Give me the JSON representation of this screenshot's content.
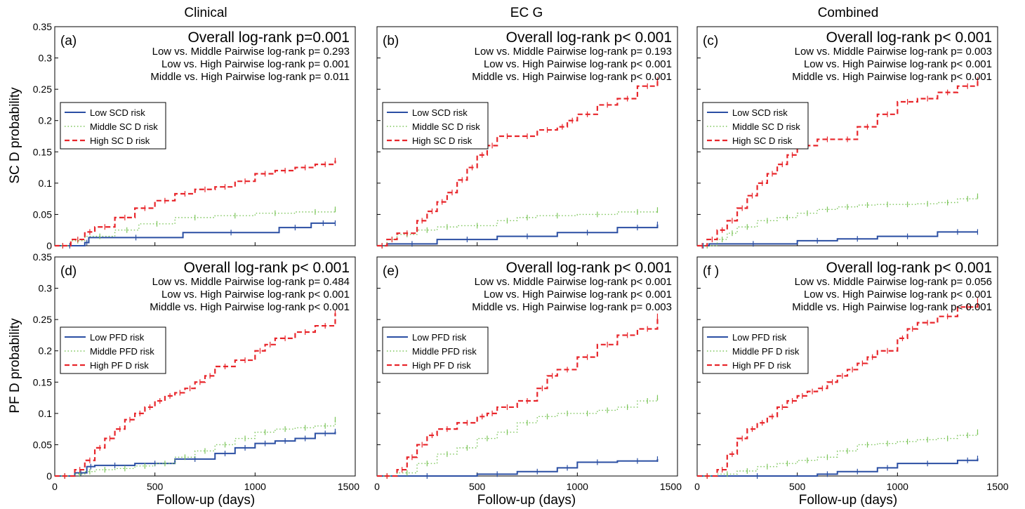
{
  "figure": {
    "column_titles": [
      "Clinical",
      "EC G",
      "Combined"
    ],
    "row_ylabels": [
      "SC D probability",
      "PF D probability"
    ],
    "xlabel": "Follow-up (days)"
  },
  "colors": {
    "low": "#2b4fa3",
    "middle": "#7cc55a",
    "high": "#e8262b",
    "axis": "#000000"
  },
  "chart_data": [
    {
      "type": "line",
      "panel": "(a)",
      "row": 0,
      "col": 0,
      "overall": "Overall log-rank p=0.001",
      "pairwise": [
        "Low vs. Middle Pairwise log-rank p= 0.293",
        "Low vs. High Pairwise log-rank p= 0.001",
        "Middle vs. High Pairwise log-rank p= 0.011"
      ],
      "legend": [
        "Low SCD risk",
        "Middle SC D risk",
        "High SC D risk"
      ],
      "legend_position": "middle-left",
      "xlim": [
        0,
        1500
      ],
      "ylim": [
        0,
        0.35
      ],
      "xticks": [
        0,
        500,
        1000,
        1500
      ],
      "yticks": [
        0,
        0.05,
        0.1,
        0.15,
        0.2,
        0.25,
        0.3,
        0.35
      ],
      "series": [
        {
          "name": "Low SCD risk",
          "style": "solid",
          "x": [
            0,
            150,
            170,
            640,
            1120,
            1280,
            1400
          ],
          "y": [
            0,
            0.005,
            0.013,
            0.021,
            0.029,
            0.036,
            0.036
          ]
        },
        {
          "name": "Middle SC D risk",
          "style": "dotted",
          "x": [
            0,
            80,
            150,
            300,
            420,
            600,
            800,
            1000,
            1200,
            1400
          ],
          "y": [
            0,
            0.008,
            0.015,
            0.025,
            0.035,
            0.045,
            0.048,
            0.052,
            0.054,
            0.058
          ]
        },
        {
          "name": "High SC D risk",
          "style": "dashed",
          "x": [
            0,
            80,
            150,
            200,
            300,
            400,
            500,
            600,
            700,
            800,
            900,
            1000,
            1100,
            1200,
            1300,
            1400
          ],
          "y": [
            0,
            0.01,
            0.022,
            0.03,
            0.045,
            0.06,
            0.072,
            0.083,
            0.09,
            0.094,
            0.103,
            0.115,
            0.12,
            0.125,
            0.13,
            0.136
          ]
        }
      ]
    },
    {
      "type": "line",
      "panel": "(b)",
      "row": 0,
      "col": 1,
      "overall": "Overall log-rank p< 0.001",
      "pairwise": [
        "Low vs. Middle Pairwise log-rank p= 0.193",
        "Low vs. High Pairwise log-rank p< 0.001",
        "Middle vs. High Pairwise log-rank p< 0.001"
      ],
      "legend": [
        "Low SCD risk",
        "Middle SC D risk",
        "High SC D risk"
      ],
      "legend_position": "middle-left",
      "xlim": [
        0,
        1500
      ],
      "ylim": [
        0,
        0.35
      ],
      "xticks": [
        0,
        500,
        1000,
        1500
      ],
      "yticks": [
        0,
        0.05,
        0.1,
        0.15,
        0.2,
        0.25,
        0.3,
        0.35
      ],
      "series": [
        {
          "name": "Low SCD risk",
          "style": "solid",
          "x": [
            0,
            50,
            300,
            600,
            900,
            1200,
            1400
          ],
          "y": [
            0,
            0.003,
            0.01,
            0.015,
            0.021,
            0.029,
            0.034
          ]
        },
        {
          "name": "Middle SC D risk",
          "style": "dotted",
          "x": [
            0,
            50,
            100,
            200,
            300,
            400,
            600,
            700,
            800,
            1000,
            1200,
            1400
          ],
          "y": [
            0,
            0.01,
            0.018,
            0.025,
            0.03,
            0.032,
            0.04,
            0.045,
            0.048,
            0.05,
            0.054,
            0.057
          ]
        },
        {
          "name": "High SC D risk",
          "style": "dashed",
          "x": [
            0,
            50,
            100,
            200,
            250,
            300,
            350,
            400,
            450,
            500,
            550,
            600,
            700,
            800,
            900,
            950,
            1000,
            1100,
            1200,
            1300,
            1400
          ],
          "y": [
            0,
            0.01,
            0.02,
            0.04,
            0.055,
            0.07,
            0.085,
            0.105,
            0.125,
            0.145,
            0.16,
            0.175,
            0.175,
            0.185,
            0.19,
            0.2,
            0.21,
            0.225,
            0.235,
            0.255,
            0.265
          ]
        }
      ]
    },
    {
      "type": "line",
      "panel": "(c)",
      "row": 0,
      "col": 2,
      "overall": "Overall log-rank p< 0.001",
      "pairwise": [
        "Low vs. Middle Pairwise log-rank p= 0.003",
        "Low vs. High Pairwise log-rank p< 0.001",
        "Middle vs. High Pairwise log-rank p< 0.001"
      ],
      "legend": [
        "Low SCD risk",
        "Middle SC D risk",
        "High SC D risk"
      ],
      "legend_position": "middle-left",
      "xlim": [
        0,
        1500
      ],
      "ylim": [
        0,
        0.35
      ],
      "xticks": [
        0,
        500,
        1000,
        1500
      ],
      "yticks": [
        0,
        0.05,
        0.1,
        0.15,
        0.2,
        0.25,
        0.3,
        0.35
      ],
      "series": [
        {
          "name": "Low SCD risk",
          "style": "solid",
          "x": [
            0,
            60,
            500,
            700,
            900,
            1200,
            1400
          ],
          "y": [
            0,
            0.003,
            0.008,
            0.011,
            0.015,
            0.022,
            0.022
          ]
        },
        {
          "name": "Middle SC D risk",
          "style": "dotted",
          "x": [
            0,
            100,
            150,
            200,
            300,
            400,
            500,
            600,
            700,
            800,
            900,
            1000,
            1100,
            1200,
            1300,
            1400
          ],
          "y": [
            0,
            0.01,
            0.02,
            0.03,
            0.04,
            0.045,
            0.052,
            0.058,
            0.062,
            0.065,
            0.066,
            0.066,
            0.067,
            0.069,
            0.075,
            0.079
          ]
        },
        {
          "name": "High SC D risk",
          "style": "dashed",
          "x": [
            0,
            50,
            100,
            150,
            200,
            250,
            300,
            350,
            400,
            450,
            500,
            600,
            700,
            800,
            900,
            1000,
            1100,
            1200,
            1300,
            1400
          ],
          "y": [
            0,
            0.01,
            0.025,
            0.04,
            0.06,
            0.08,
            0.1,
            0.115,
            0.13,
            0.145,
            0.16,
            0.17,
            0.17,
            0.19,
            0.21,
            0.23,
            0.235,
            0.245,
            0.255,
            0.265
          ]
        }
      ]
    },
    {
      "type": "line",
      "panel": "(d)",
      "row": 1,
      "col": 0,
      "overall": "Overall log-rank p< 0.001",
      "pairwise": [
        "Low vs. Middle Pairwise log-rank p= 0.484",
        "Low vs. High Pairwise log-rank p< 0.001",
        "Middle vs. High Pairwise log-rank p< 0.001"
      ],
      "legend": [
        "Low PFD risk",
        "Middle PFD risk",
        "High PF D risk"
      ],
      "legend_position": "middle-left",
      "xlim": [
        0,
        1500
      ],
      "ylim": [
        0,
        0.35
      ],
      "xticks": [
        0,
        500,
        1000,
        1500
      ],
      "yticks": [
        0,
        0.05,
        0.1,
        0.15,
        0.2,
        0.25,
        0.3,
        0.35
      ],
      "series": [
        {
          "name": "Low PFD risk",
          "style": "solid",
          "x": [
            0,
            100,
            160,
            200,
            400,
            600,
            800,
            900,
            1000,
            1100,
            1200,
            1300,
            1400
          ],
          "y": [
            0,
            0.005,
            0.015,
            0.017,
            0.02,
            0.027,
            0.036,
            0.045,
            0.052,
            0.056,
            0.06,
            0.068,
            0.071
          ]
        },
        {
          "name": "Middle PFD risk",
          "style": "dotted",
          "x": [
            0,
            100,
            150,
            200,
            300,
            400,
            500,
            600,
            700,
            800,
            900,
            1000,
            1100,
            1200,
            1300,
            1400
          ],
          "y": [
            0,
            0.003,
            0.007,
            0.01,
            0.012,
            0.016,
            0.02,
            0.03,
            0.04,
            0.05,
            0.06,
            0.07,
            0.075,
            0.077,
            0.08,
            0.09
          ]
        },
        {
          "name": "High PF D risk",
          "style": "dashed",
          "x": [
            0,
            100,
            150,
            200,
            250,
            300,
            350,
            400,
            450,
            500,
            550,
            600,
            650,
            700,
            750,
            800,
            900,
            1000,
            1050,
            1100,
            1200,
            1300,
            1400
          ],
          "y": [
            0,
            0.01,
            0.025,
            0.045,
            0.06,
            0.075,
            0.09,
            0.1,
            0.11,
            0.12,
            0.128,
            0.133,
            0.14,
            0.15,
            0.16,
            0.175,
            0.185,
            0.2,
            0.21,
            0.22,
            0.23,
            0.24,
            0.26
          ]
        }
      ]
    },
    {
      "type": "line",
      "panel": "(e)",
      "row": 1,
      "col": 1,
      "overall": "Overall log-rank p< 0.001",
      "pairwise": [
        "Low vs. Middle Pairwise log-rank p< 0.001",
        "Low vs. High Pairwise log-rank p< 0.001",
        "Middle vs. High Pairwise log-rank p= 0.003"
      ],
      "legend": [
        "Low PFD risk",
        "Middle PFD risk",
        "High PF D risk"
      ],
      "legend_position": "middle-left",
      "xlim": [
        0,
        1500
      ],
      "ylim": [
        0,
        0.35
      ],
      "xticks": [
        0,
        500,
        1000,
        1500
      ],
      "yticks": [
        0,
        0.05,
        0.1,
        0.15,
        0.2,
        0.25,
        0.3,
        0.35
      ],
      "series": [
        {
          "name": "Low PFD risk",
          "style": "solid",
          "x": [
            0,
            500,
            700,
            900,
            1000,
            1200,
            1400
          ],
          "y": [
            0,
            0.003,
            0.007,
            0.013,
            0.022,
            0.024,
            0.027
          ]
        },
        {
          "name": "Middle PFD risk",
          "style": "dotted",
          "x": [
            0,
            100,
            200,
            300,
            400,
            500,
            600,
            700,
            800,
            900,
            1000,
            1100,
            1200,
            1300,
            1400
          ],
          "y": [
            0,
            0.005,
            0.02,
            0.035,
            0.045,
            0.06,
            0.07,
            0.085,
            0.095,
            0.1,
            0.1,
            0.105,
            0.11,
            0.12,
            0.125
          ]
        },
        {
          "name": "High PF D risk",
          "style": "dashed",
          "x": [
            0,
            100,
            150,
            200,
            250,
            300,
            400,
            500,
            550,
            600,
            700,
            800,
            850,
            900,
            1000,
            1100,
            1200,
            1300,
            1400
          ],
          "y": [
            0,
            0.01,
            0.03,
            0.05,
            0.065,
            0.075,
            0.085,
            0.095,
            0.1,
            0.11,
            0.12,
            0.14,
            0.16,
            0.17,
            0.19,
            0.21,
            0.225,
            0.235,
            0.255
          ]
        }
      ]
    },
    {
      "type": "line",
      "panel": "(f )",
      "row": 1,
      "col": 2,
      "overall": "Overall log-rank p< 0.001",
      "pairwise": [
        "Low vs. Middle Pairwise log-rank p= 0.056",
        "Low vs. High Pairwise log-rank p< 0.001",
        "Middle vs. High Pairwise log-rank p< 0.001"
      ],
      "legend": [
        "Low PFD risk",
        "Middle PF D risk",
        "High PF D risk"
      ],
      "legend_position": "middle-left",
      "xlim": [
        0,
        1500
      ],
      "ylim": [
        0,
        0.35
      ],
      "xticks": [
        0,
        500,
        1000,
        1500
      ],
      "yticks": [
        0,
        0.05,
        0.1,
        0.15,
        0.2,
        0.25,
        0.3,
        0.35
      ],
      "series": [
        {
          "name": "Low PFD risk",
          "style": "solid",
          "x": [
            0,
            600,
            700,
            900,
            1000,
            1300,
            1400
          ],
          "y": [
            0,
            0.003,
            0.007,
            0.013,
            0.02,
            0.025,
            0.028
          ]
        },
        {
          "name": "Middle PF D risk",
          "style": "dotted",
          "x": [
            0,
            100,
            200,
            300,
            400,
            500,
            600,
            700,
            800,
            900,
            1000,
            1100,
            1200,
            1300,
            1400
          ],
          "y": [
            0,
            0.003,
            0.008,
            0.015,
            0.02,
            0.025,
            0.03,
            0.04,
            0.05,
            0.052,
            0.055,
            0.058,
            0.06,
            0.065,
            0.07
          ]
        },
        {
          "name": "High PF D risk",
          "style": "dashed",
          "x": [
            0,
            100,
            150,
            200,
            250,
            300,
            350,
            400,
            450,
            500,
            550,
            600,
            650,
            700,
            750,
            800,
            850,
            900,
            1000,
            1050,
            1100,
            1200,
            1300,
            1400
          ],
          "y": [
            0,
            0.01,
            0.035,
            0.06,
            0.075,
            0.085,
            0.095,
            0.11,
            0.12,
            0.128,
            0.135,
            0.14,
            0.15,
            0.16,
            0.17,
            0.18,
            0.19,
            0.2,
            0.22,
            0.235,
            0.245,
            0.255,
            0.27,
            0.28
          ]
        }
      ]
    }
  ]
}
